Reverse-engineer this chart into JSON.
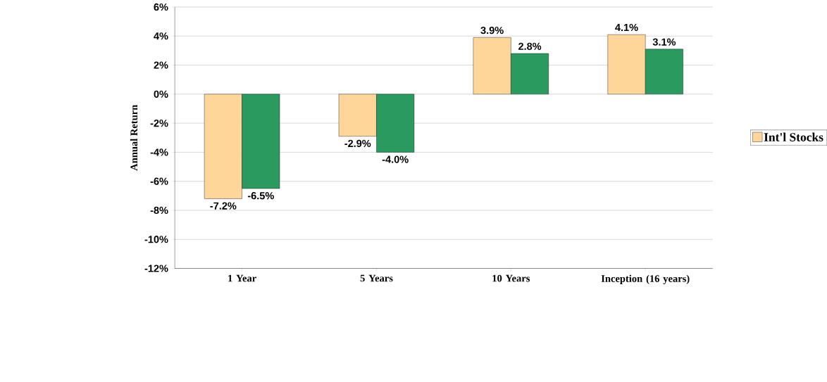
{
  "chart_data": {
    "type": "bar",
    "ylabel": "Annual Return",
    "categories": [
      "1 Year",
      "5 Years",
      "10 Years",
      "Inception (16 years)"
    ],
    "series": [
      {
        "name": "Int'l Stocks",
        "color": "#ffd699",
        "values": [
          -7.2,
          -2.9,
          3.9,
          4.1
        ],
        "value_labels": [
          "-7.2%",
          "-2.9%",
          "3.9%",
          "4.1%"
        ]
      },
      {
        "color": "#2a9a5e",
        "values": [
          -6.5,
          -4.0,
          2.8,
          3.1
        ],
        "value_labels": [
          "-6.5%",
          "-4.0%",
          "2.8%",
          "3.1%"
        ]
      }
    ],
    "ylim": [
      -12,
      6
    ],
    "yticks": [
      {
        "value": -12,
        "label": "-12%"
      },
      {
        "value": -10,
        "label": "-10%"
      },
      {
        "value": -8,
        "label": "-8%"
      },
      {
        "value": -6,
        "label": "-6%"
      },
      {
        "value": -4,
        "label": "-4%"
      },
      {
        "value": -2,
        "label": "-2%"
      },
      {
        "value": 0,
        "label": "0%"
      },
      {
        "value": 2,
        "label": "2%"
      },
      {
        "value": 4,
        "label": "4%"
      },
      {
        "value": 6,
        "label": "6%"
      }
    ],
    "grid": "y",
    "legend": "right"
  }
}
